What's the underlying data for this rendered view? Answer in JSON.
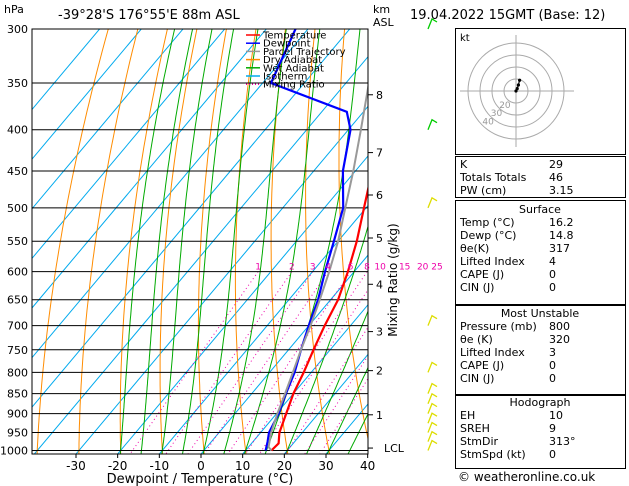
{
  "header": {
    "hpa": "hPa",
    "location": "-39°28'S  176°55'E  88m  ASL",
    "km": "km",
    "asl": "ASL",
    "datetime": "19.04.2022  15GMT  (Base: 12)"
  },
  "legend": [
    {
      "label": "Temperature",
      "color": "#ff0000"
    },
    {
      "label": "Dewpoint",
      "color": "#0000ff"
    },
    {
      "label": "Parcel Trajectory",
      "color": "#999999"
    },
    {
      "label": "Dry Adiabat",
      "color": "#ff8c00"
    },
    {
      "label": "Wet Adiabat",
      "color": "#00aa00"
    },
    {
      "label": "Isotherm",
      "color": "#00aaee"
    },
    {
      "label": "Mixing Ratio",
      "color": "#ee00aa"
    }
  ],
  "chart_data": {
    "type": "line",
    "xlabel": "Dewpoint / Temperature (°C)",
    "ylabel": "Mixing Ratio (g/kg)",
    "pressure_levels": [
      300,
      350,
      400,
      450,
      500,
      550,
      600,
      650,
      700,
      750,
      800,
      850,
      900,
      950,
      1000
    ],
    "temp_ticks": [
      -30,
      -20,
      -10,
      0,
      10,
      20,
      30,
      40
    ],
    "km_ticks": [
      {
        "label": "8",
        "p": 362
      },
      {
        "label": "7",
        "p": 427
      },
      {
        "label": "6",
        "p": 482
      },
      {
        "label": "5",
        "p": 545
      },
      {
        "label": "4",
        "p": 622
      },
      {
        "label": "3",
        "p": 712
      },
      {
        "label": "2",
        "p": 796
      },
      {
        "label": "1",
        "p": 903
      },
      {
        "label": "LCL",
        "p": 993
      }
    ],
    "mixing_ratio_labels": [
      "1",
      "2",
      "3",
      "4",
      "6",
      "8",
      "10",
      "15",
      "20",
      "25"
    ],
    "mixing_ratio_values": [
      1,
      2,
      3,
      4,
      6,
      8,
      10,
      15,
      20,
      25
    ],
    "xlim": [
      -35,
      40
    ],
    "plim": [
      300,
      1010
    ],
    "series": [
      {
        "name": "Temperature",
        "color": "#ff0000",
        "points": [
          [
            16.2,
            1000
          ],
          [
            16.5,
            980
          ],
          [
            14.5,
            950
          ],
          [
            12.3,
            900
          ],
          [
            10,
            850
          ],
          [
            8.2,
            800
          ],
          [
            6,
            750
          ],
          [
            3.8,
            700
          ],
          [
            1.8,
            650
          ],
          [
            -1.5,
            600
          ],
          [
            -5.5,
            550
          ],
          [
            -10.5,
            500
          ],
          [
            -16,
            450
          ],
          [
            -22.5,
            400
          ],
          [
            -29.5,
            350
          ],
          [
            -37,
            300
          ]
        ]
      },
      {
        "name": "Dewpoint",
        "color": "#0000ff",
        "points": [
          [
            14.8,
            1000
          ],
          [
            13.5,
            975
          ],
          [
            12,
            950
          ],
          [
            10.5,
            900
          ],
          [
            8.2,
            850
          ],
          [
            6,
            800
          ],
          [
            3,
            750
          ],
          [
            0,
            700
          ],
          [
            -3,
            650
          ],
          [
            -7,
            600
          ],
          [
            -11,
            550
          ],
          [
            -15.5,
            500
          ],
          [
            -23,
            450
          ],
          [
            -29.5,
            400
          ],
          [
            -34,
            380
          ],
          [
            -58,
            350
          ],
          [
            -63,
            300
          ]
        ]
      },
      {
        "name": "Parcel Trajectory",
        "color": "#999999",
        "points": [
          [
            16.2,
            1000
          ],
          [
            14.8,
            990
          ],
          [
            12.5,
            950
          ],
          [
            10.2,
            900
          ],
          [
            8,
            850
          ],
          [
            5.6,
            800
          ],
          [
            3,
            750
          ],
          [
            0.4,
            700
          ],
          [
            -2.6,
            650
          ],
          [
            -6,
            600
          ],
          [
            -10,
            550
          ],
          [
            -15,
            500
          ],
          [
            -20.5,
            450
          ],
          [
            -27,
            400
          ],
          [
            -34.5,
            350
          ],
          [
            -43,
            300
          ]
        ]
      }
    ],
    "winds": [
      {
        "p": 1000,
        "color": "#dddd00"
      },
      {
        "p": 975,
        "color": "#dddd00"
      },
      {
        "p": 950,
        "color": "#dddd00"
      },
      {
        "p": 925,
        "color": "#dddd00"
      },
      {
        "p": 900,
        "color": "#dddd00"
      },
      {
        "p": 875,
        "color": "#dddd00"
      },
      {
        "p": 850,
        "color": "#dddd00"
      },
      {
        "p": 800,
        "color": "#dddd00"
      },
      {
        "p": 700,
        "color": "#dddd00"
      },
      {
        "p": 500,
        "color": "#dddd00"
      },
      {
        "p": 400,
        "color": "#00cc00"
      },
      {
        "p": 300,
        "color": "#00cc00"
      }
    ]
  },
  "hodograph": {
    "unit": "kt",
    "ring_labels": [
      "40",
      "30",
      "20"
    ],
    "points": [
      [
        0,
        0
      ],
      [
        1,
        2
      ],
      [
        2,
        5
      ],
      [
        3,
        9
      ]
    ]
  },
  "indices": {
    "top": [
      {
        "k": "K",
        "v": "29"
      },
      {
        "k": "Totals Totals",
        "v": "46"
      },
      {
        "k": "PW (cm)",
        "v": "3.15"
      }
    ],
    "surface_title": "Surface",
    "surface": [
      {
        "k": "Temp (°C)",
        "v": "16.2"
      },
      {
        "k": "Dewp (°C)",
        "v": "14.8"
      },
      {
        "k": "θe(K)",
        "v": "317"
      },
      {
        "k": "Lifted Index",
        "v": "4"
      },
      {
        "k": "CAPE (J)",
        "v": "0"
      },
      {
        "k": "CIN (J)",
        "v": "0"
      }
    ],
    "unstable_title": "Most Unstable",
    "unstable": [
      {
        "k": "Pressure (mb)",
        "v": "800"
      },
      {
        "k": "θe (K)",
        "v": "320"
      },
      {
        "k": "Lifted Index",
        "v": "3"
      },
      {
        "k": "CAPE (J)",
        "v": "0"
      },
      {
        "k": "CIN (J)",
        "v": "0"
      }
    ],
    "hodo_title": "Hodograph",
    "hodo": [
      {
        "k": "EH",
        "v": "10"
      },
      {
        "k": "SREH",
        "v": "9"
      },
      {
        "k": "StmDir",
        "v": "313°"
      },
      {
        "k": "StmSpd (kt)",
        "v": "0"
      }
    ]
  },
  "footer": "© weatheronline.co.uk"
}
